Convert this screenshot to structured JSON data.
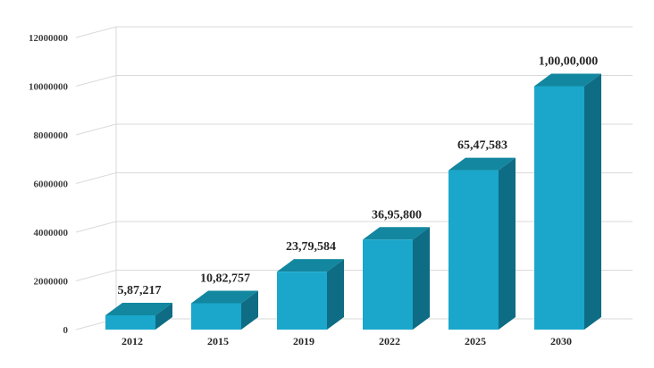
{
  "chart_data": {
    "type": "bar",
    "style": "3d-column",
    "categories": [
      "2012",
      "2015",
      "2019",
      "2022",
      "2025",
      "2030"
    ],
    "values": [
      587217,
      1082757,
      2379584,
      3695800,
      6547583,
      10000000
    ],
    "data_labels": [
      "5,87,217",
      "10,82,757",
      "23,79,584",
      "36,95,800",
      "65,47,583",
      "1,00,00,000"
    ],
    "ylim": [
      0,
      12000000
    ],
    "yticks": [
      "0",
      "2000000",
      "4000000",
      "6000000",
      "8000000",
      "10000000",
      "12000000"
    ],
    "ytick_values": [
      0,
      2000000,
      4000000,
      6000000,
      8000000,
      10000000,
      12000000
    ],
    "grid": true,
    "legend": "none",
    "colors": {
      "front": "#1aa7cb",
      "side": "#0e6c84",
      "top": "#12879f",
      "grid": "#d9d9d9",
      "text": "#262626"
    }
  }
}
